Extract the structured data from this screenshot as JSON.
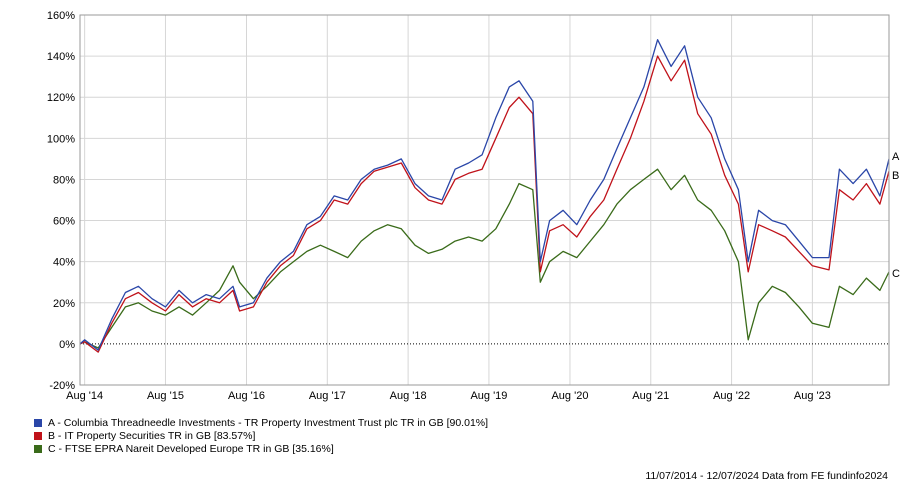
{
  "chart_data": {
    "type": "line",
    "y_unit": "%",
    "ylim": [
      -20,
      160
    ],
    "y_ticks": [
      "160%",
      "140%",
      "120%",
      "100%",
      "80%",
      "60%",
      "40%",
      "20%",
      "0%",
      "-20%"
    ],
    "y_tick_values": [
      160,
      140,
      120,
      100,
      80,
      60,
      40,
      20,
      0,
      -20
    ],
    "x_range": [
      "2014-07-11",
      "2024-07-12"
    ],
    "x_ticks": [
      "Aug '14",
      "Aug '15",
      "Aug '16",
      "Aug '17",
      "Aug '18",
      "Aug '19",
      "Aug '20",
      "Aug '21",
      "Aug '22",
      "Aug '23"
    ],
    "x_tick_dates": [
      "2014-08-01",
      "2015-08-01",
      "2016-08-01",
      "2017-08-01",
      "2018-08-01",
      "2019-08-01",
      "2020-08-01",
      "2021-08-01",
      "2022-08-01",
      "2023-08-01"
    ],
    "grid": true,
    "zero_line": "dotted",
    "series": [
      {
        "name": "A - Columbia Threadneedle Investments - TR Property Investment Trust plc TR in GB [90.01%]",
        "end_label": "A",
        "color": "#2a46a8",
        "dates": [
          "2014-07-11",
          "2014-08-01",
          "2014-10-01",
          "2014-12-01",
          "2015-02-01",
          "2015-04-01",
          "2015-06-01",
          "2015-08-01",
          "2015-10-01",
          "2015-12-01",
          "2016-02-01",
          "2016-04-01",
          "2016-06-01",
          "2016-07-01",
          "2016-09-01",
          "2016-11-01",
          "2017-01-01",
          "2017-03-01",
          "2017-05-01",
          "2017-07-01",
          "2017-09-01",
          "2017-11-01",
          "2018-01-01",
          "2018-03-01",
          "2018-05-01",
          "2018-07-01",
          "2018-09-01",
          "2018-11-01",
          "2019-01-01",
          "2019-03-01",
          "2019-05-01",
          "2019-07-01",
          "2019-09-01",
          "2019-11-01",
          "2019-12-15",
          "2020-02-15",
          "2020-03-20",
          "2020-05-01",
          "2020-07-01",
          "2020-09-01",
          "2020-11-01",
          "2021-01-01",
          "2021-03-01",
          "2021-05-01",
          "2021-07-01",
          "2021-09-01",
          "2021-11-01",
          "2022-01-01",
          "2022-03-01",
          "2022-05-01",
          "2022-07-01",
          "2022-09-01",
          "2022-10-15",
          "2022-12-01",
          "2023-02-01",
          "2023-04-01",
          "2023-06-01",
          "2023-08-01",
          "2023-10-15",
          "2023-12-01",
          "2024-02-01",
          "2024-04-01",
          "2024-06-01",
          "2024-07-12"
        ],
        "values": [
          0,
          2,
          -3,
          12,
          25,
          28,
          22,
          18,
          26,
          20,
          24,
          22,
          28,
          18,
          20,
          32,
          40,
          45,
          58,
          62,
          72,
          70,
          80,
          85,
          87,
          90,
          78,
          72,
          70,
          85,
          88,
          92,
          110,
          125,
          128,
          118,
          40,
          60,
          65,
          58,
          70,
          80,
          95,
          110,
          125,
          148,
          135,
          145,
          120,
          110,
          90,
          75,
          40,
          65,
          60,
          58,
          50,
          42,
          42,
          85,
          78,
          85,
          72,
          90
        ]
      },
      {
        "name": "B - IT Property Securities TR in GB [83.57%]",
        "end_label": "B",
        "color": "#c0121a",
        "dates": [
          "2014-07-11",
          "2014-08-01",
          "2014-10-01",
          "2014-12-01",
          "2015-02-01",
          "2015-04-01",
          "2015-06-01",
          "2015-08-01",
          "2015-10-01",
          "2015-12-01",
          "2016-02-01",
          "2016-04-01",
          "2016-06-01",
          "2016-07-01",
          "2016-09-01",
          "2016-11-01",
          "2017-01-01",
          "2017-03-01",
          "2017-05-01",
          "2017-07-01",
          "2017-09-01",
          "2017-11-01",
          "2018-01-01",
          "2018-03-01",
          "2018-05-01",
          "2018-07-01",
          "2018-09-01",
          "2018-11-01",
          "2019-01-01",
          "2019-03-01",
          "2019-05-01",
          "2019-07-01",
          "2019-09-01",
          "2019-11-01",
          "2019-12-15",
          "2020-02-15",
          "2020-03-20",
          "2020-05-01",
          "2020-07-01",
          "2020-09-01",
          "2020-11-01",
          "2021-01-01",
          "2021-03-01",
          "2021-05-01",
          "2021-07-01",
          "2021-09-01",
          "2021-11-01",
          "2022-01-01",
          "2022-03-01",
          "2022-05-01",
          "2022-07-01",
          "2022-09-01",
          "2022-10-15",
          "2022-12-01",
          "2023-02-01",
          "2023-04-01",
          "2023-06-01",
          "2023-08-01",
          "2023-10-15",
          "2023-12-01",
          "2024-02-01",
          "2024-04-01",
          "2024-06-01",
          "2024-07-12"
        ],
        "values": [
          0,
          1,
          -4,
          10,
          22,
          25,
          20,
          16,
          24,
          18,
          22,
          20,
          26,
          16,
          18,
          30,
          38,
          43,
          56,
          60,
          70,
          68,
          78,
          84,
          86,
          88,
          76,
          70,
          68,
          80,
          83,
          85,
          100,
          115,
          120,
          112,
          35,
          55,
          58,
          52,
          62,
          70,
          85,
          100,
          118,
          140,
          128,
          138,
          112,
          102,
          82,
          68,
          35,
          58,
          55,
          52,
          45,
          38,
          36,
          75,
          70,
          78,
          68,
          84
        ]
      },
      {
        "name": "C - FTSE EPRA Nareit Developed Europe TR in GB [35.16%]",
        "end_label": "C",
        "color": "#3a6b1a",
        "dates": [
          "2014-07-11",
          "2014-08-01",
          "2014-10-01",
          "2014-12-01",
          "2015-02-01",
          "2015-04-01",
          "2015-06-01",
          "2015-08-01",
          "2015-10-01",
          "2015-12-01",
          "2016-02-01",
          "2016-04-01",
          "2016-06-01",
          "2016-07-01",
          "2016-09-01",
          "2016-11-01",
          "2017-01-01",
          "2017-03-01",
          "2017-05-01",
          "2017-07-01",
          "2017-09-01",
          "2017-11-01",
          "2018-01-01",
          "2018-03-01",
          "2018-05-01",
          "2018-07-01",
          "2018-09-01",
          "2018-11-01",
          "2019-01-01",
          "2019-03-01",
          "2019-05-01",
          "2019-07-01",
          "2019-09-01",
          "2019-11-01",
          "2019-12-15",
          "2020-02-15",
          "2020-03-20",
          "2020-05-01",
          "2020-07-01",
          "2020-09-01",
          "2020-11-01",
          "2021-01-01",
          "2021-03-01",
          "2021-05-01",
          "2021-07-01",
          "2021-09-01",
          "2021-11-01",
          "2022-01-01",
          "2022-03-01",
          "2022-05-01",
          "2022-07-01",
          "2022-09-01",
          "2022-10-15",
          "2022-12-01",
          "2023-02-01",
          "2023-04-01",
          "2023-06-01",
          "2023-08-01",
          "2023-10-15",
          "2023-12-01",
          "2024-02-01",
          "2024-04-01",
          "2024-06-01",
          "2024-07-12"
        ],
        "values": [
          0,
          1,
          -2,
          8,
          18,
          20,
          16,
          14,
          18,
          14,
          20,
          26,
          38,
          30,
          22,
          28,
          35,
          40,
          45,
          48,
          45,
          42,
          50,
          55,
          58,
          56,
          48,
          44,
          46,
          50,
          52,
          50,
          56,
          68,
          78,
          75,
          30,
          40,
          45,
          42,
          50,
          58,
          68,
          75,
          80,
          85,
          75,
          82,
          70,
          65,
          55,
          40,
          2,
          20,
          28,
          25,
          18,
          10,
          8,
          28,
          24,
          32,
          26,
          35
        ]
      }
    ],
    "legend_position": "bottom-left",
    "footer_date_range": "11/07/2014 - 12/07/2024",
    "footer_source": "Data from FE fundinfo2024"
  }
}
